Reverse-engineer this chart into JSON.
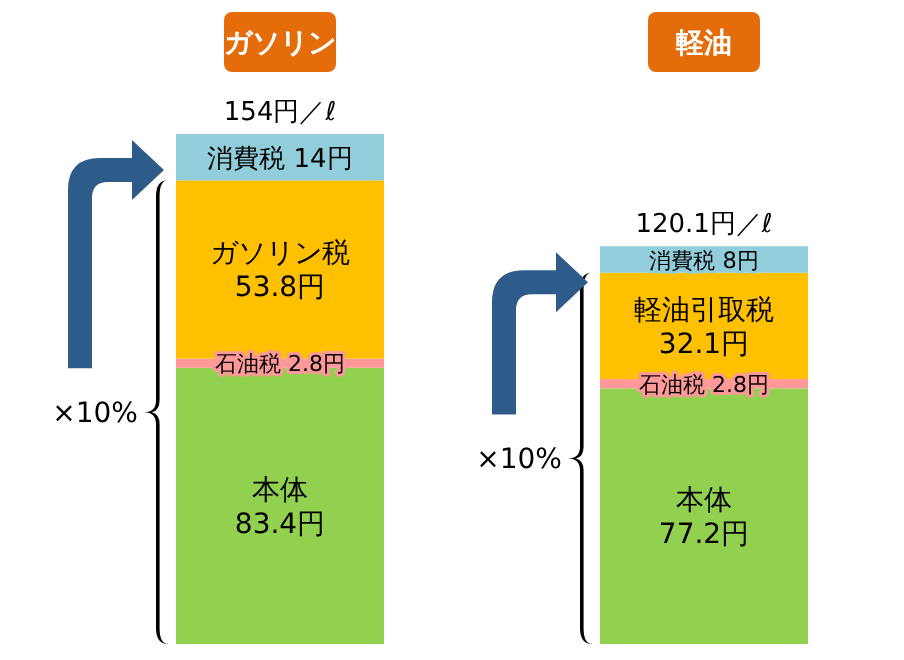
{
  "chart_data": {
    "type": "bar",
    "stacked": true,
    "relative": false,
    "categories": [
      "ガソリン",
      "軽油"
    ],
    "series": [
      {
        "color": "#92d050",
        "values": [
          83.4,
          77.2
        ],
        "value_labels": [
          "本体\n83.4円",
          "本体\n77.2円"
        ]
      },
      {
        "color": "#ff9999",
        "values": [
          2.8,
          2.8
        ],
        "value_labels": [
          "石油税 2.8円",
          "石油税 2.8円"
        ]
      },
      {
        "color": "#ffc000",
        "values": [
          53.8,
          32.1
        ],
        "value_labels": [
          "ガソリン税\n53.8円",
          "軽油引取税\n32.1円"
        ]
      },
      {
        "color": "#92cddc",
        "values": [
          14,
          8
        ],
        "value_labels": [
          "消費税\n14円",
          "消費税\n8円"
        ]
      }
    ],
    "totals": [
      "154円／ℓ",
      "120.1円／ℓ"
    ],
    "annotations": [
      "×10%",
      "×10%"
    ]
  }
}
